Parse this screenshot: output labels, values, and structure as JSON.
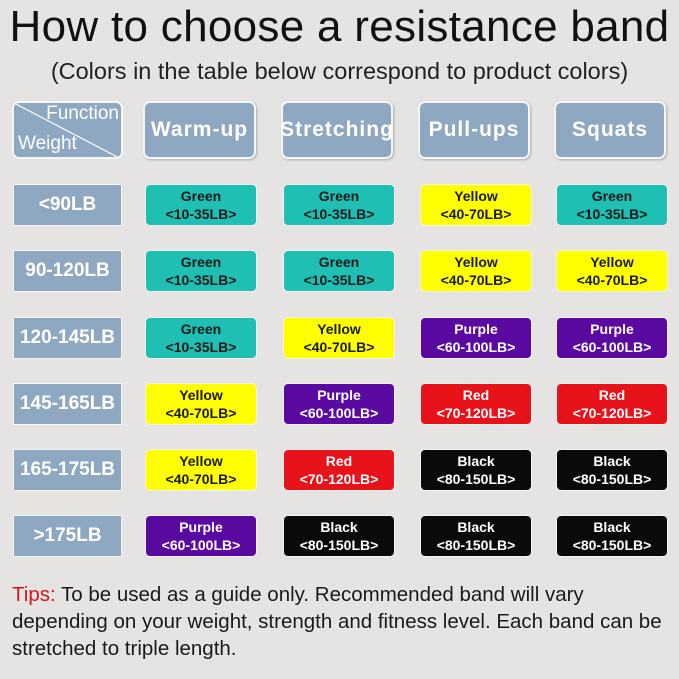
{
  "title": "How to choose a resistance band",
  "subtitle": "(Colors in the table below correspond to product colors)",
  "corner": {
    "function_label": "Function",
    "weight_label": "Weight"
  },
  "columns": [
    "Warm-up",
    "Stretching",
    "Pull-ups",
    "Squats"
  ],
  "colors": {
    "Green": {
      "bg": "#1fbfb3",
      "fg": "#1a1a1a"
    },
    "Yellow": {
      "bg": "#ffff00",
      "fg": "#1a1a1a"
    },
    "Purple": {
      "bg": "#5a0aa0",
      "fg": "#ffffff"
    },
    "Red": {
      "bg": "#e8121b",
      "fg": "#ffffff"
    },
    "Black": {
      "bg": "#0a0a0a",
      "fg": "#ffffff"
    }
  },
  "rows": [
    {
      "weight": "<90LB",
      "cells": [
        {
          "color": "Green",
          "range": "<10-35LB>"
        },
        {
          "color": "Green",
          "range": "<10-35LB>"
        },
        {
          "color": "Yellow",
          "range": "<40-70LB>"
        },
        {
          "color": "Green",
          "range": "<10-35LB>"
        }
      ]
    },
    {
      "weight": "90-120LB",
      "cells": [
        {
          "color": "Green",
          "range": "<10-35LB>"
        },
        {
          "color": "Green",
          "range": "<10-35LB>"
        },
        {
          "color": "Yellow",
          "range": "<40-70LB>"
        },
        {
          "color": "Yellow",
          "range": "<40-70LB>"
        }
      ]
    },
    {
      "weight": "120-145LB",
      "cells": [
        {
          "color": "Green",
          "range": "<10-35LB>"
        },
        {
          "color": "Yellow",
          "range": "<40-70LB>"
        },
        {
          "color": "Purple",
          "range": "<60-100LB>"
        },
        {
          "color": "Purple",
          "range": "<60-100LB>"
        }
      ]
    },
    {
      "weight": "145-165LB",
      "cells": [
        {
          "color": "Yellow",
          "range": "<40-70LB>"
        },
        {
          "color": "Purple",
          "range": "<60-100LB>"
        },
        {
          "color": "Red",
          "range": "<70-120LB>"
        },
        {
          "color": "Red",
          "range": "<70-120LB>"
        }
      ]
    },
    {
      "weight": "165-175LB",
      "cells": [
        {
          "color": "Yellow",
          "range": "<40-70LB>"
        },
        {
          "color": "Red",
          "range": "<70-120LB>"
        },
        {
          "color": "Black",
          "range": "<80-150LB>"
        },
        {
          "color": "Black",
          "range": "<80-150LB>"
        }
      ]
    },
    {
      "weight": ">175LB",
      "cells": [
        {
          "color": "Purple",
          "range": "<60-100LB>"
        },
        {
          "color": "Black",
          "range": "<80-150LB>"
        },
        {
          "color": "Black",
          "range": "<80-150LB>"
        },
        {
          "color": "Black",
          "range": "<80-150LB>"
        }
      ]
    }
  ],
  "tips": {
    "label": "Tips:",
    "text": " To be used as a guide only. Recommended band will vary depending on your weight, strength and fitness level. Each band can be stretched to triple length."
  }
}
